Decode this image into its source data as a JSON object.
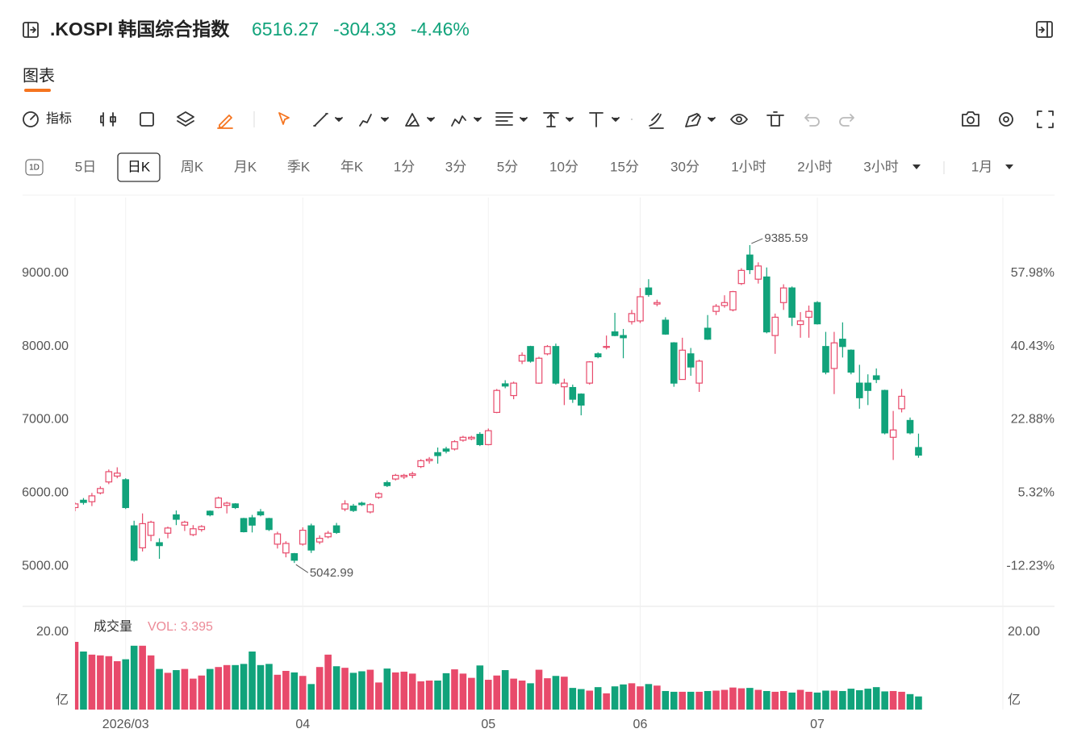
{
  "quote": {
    "symbol": ".KOSPI 韩国综合指数",
    "price": "6516.27",
    "change": "-304.33",
    "change_pct": "-4.46%"
  },
  "tab": "图表",
  "toolbar": {
    "indicator": "指标"
  },
  "intervals_icon": "1D",
  "intervals": [
    "5日",
    "日K",
    "周K",
    "月K",
    "季K",
    "年K",
    "1分",
    "3分",
    "5分",
    "10分",
    "15分",
    "30分",
    "1小时",
    "2小时",
    "3小时",
    "1月"
  ],
  "chart_data": {
    "type": "candlestick",
    "up_color": "#e84a6b",
    "down_color": "#11a37b",
    "up_hollow": true,
    "grid": "x",
    "open": [
      5800,
      5900,
      5880,
      6000,
      6150,
      6230,
      6180,
      5550,
      5250,
      5420,
      5320,
      5450,
      5700,
      5560,
      5430,
      5500,
      5750,
      5800,
      5830,
      5850,
      5650,
      5660,
      5740,
      5650,
      5300,
      5180,
      5170,
      5300,
      5550,
      5330,
      5400,
      5550,
      5780,
      5820,
      5860,
      5740,
      5940,
      6140,
      6190,
      6220,
      6240,
      6360,
      6440,
      6550,
      6600,
      6600,
      6720,
      6740,
      6800,
      6660,
      7100,
      7490,
      7330,
      7800,
      8000,
      7500,
      7900,
      8000,
      7450,
      7440,
      7350,
      7500,
      7900,
      7990,
      8200,
      8150,
      8340,
      8350,
      8800,
      8580,
      8360,
      8050,
      7550,
      7900,
      7500,
      8250,
      8480,
      8560,
      8500,
      8860,
      9250,
      8920,
      8950,
      8150,
      8600,
      8800,
      8300,
      8400,
      8600,
      8000,
      7700,
      8100,
      7950,
      7500,
      7500,
      7600,
      7400,
      6760,
      7150,
      6990,
      6620
    ],
    "high": [
      5870,
      5930,
      6000,
      6090,
      6320,
      6350,
      6200,
      5620,
      5720,
      5620,
      5380,
      5540,
      5760,
      5620,
      5560,
      5560,
      5760,
      5950,
      5880,
      5860,
      5660,
      5700,
      5780,
      5660,
      5470,
      5340,
      5180,
      5530,
      5580,
      5420,
      5480,
      5590,
      5900,
      5850,
      5880,
      5860,
      6010,
      6170,
      6260,
      6260,
      6290,
      6460,
      6490,
      6620,
      6630,
      6720,
      6780,
      6780,
      6830,
      6880,
      7420,
      7540,
      7520,
      7920,
      8010,
      7860,
      8020,
      8040,
      7560,
      7480,
      7360,
      7800,
      7920,
      8150,
      8460,
      8240,
      8500,
      8800,
      8920,
      8640,
      8400,
      8060,
      8120,
      7980,
      7820,
      8430,
      8580,
      8700,
      8760,
      9070,
      9385.59,
      9150,
      9080,
      8450,
      8850,
      8820,
      8470,
      8560,
      8620,
      8200,
      8200,
      8330,
      7960,
      7750,
      7620,
      7700,
      7410,
      7120,
      7420,
      7030,
      6810
    ],
    "low": [
      5750,
      5840,
      5820,
      5980,
      6120,
      6200,
      5780,
      5060,
      5200,
      5340,
      5100,
      5380,
      5560,
      5480,
      5410,
      5470,
      5680,
      5790,
      5720,
      5780,
      5460,
      5460,
      5680,
      5480,
      5240,
      5120,
      5042.99,
      5280,
      5180,
      5300,
      5380,
      5440,
      5750,
      5740,
      5820,
      5720,
      5920,
      6080,
      6170,
      6190,
      6200,
      6340,
      6400,
      6400,
      6540,
      6580,
      6700,
      6720,
      6640,
      6650,
      7090,
      7430,
      7280,
      7760,
      7780,
      7490,
      7880,
      7480,
      7200,
      7230,
      7060,
      7480,
      7840,
      7960,
      8140,
      7840,
      8300,
      8320,
      8680,
      8550,
      8160,
      7450,
      7550,
      7600,
      7380,
      8090,
      8430,
      8530,
      8480,
      8840,
      8990,
      8860,
      8180,
      7900,
      8500,
      8280,
      8120,
      8120,
      8300,
      7620,
      7350,
      7850,
      7620,
      7150,
      7200,
      7500,
      6800,
      6450,
      7100,
      6800,
      6480
    ],
    "close": [
      5850,
      5870,
      5960,
      6060,
      6290,
      6270,
      5800,
      5080,
      5580,
      5600,
      5280,
      5520,
      5640,
      5600,
      5510,
      5540,
      5700,
      5930,
      5860,
      5800,
      5470,
      5560,
      5700,
      5500,
      5440,
      5310,
      5080,
      5490,
      5220,
      5380,
      5450,
      5460,
      5850,
      5760,
      5840,
      5840,
      5990,
      6100,
      6240,
      6240,
      6260,
      6440,
      6460,
      6510,
      6570,
      6700,
      6760,
      6760,
      6660,
      6850,
      7400,
      7460,
      7500,
      7880,
      7800,
      7840,
      8000,
      7500,
      7500,
      7280,
      7200,
      7790,
      7860,
      8000,
      8150,
      8120,
      8450,
      8680,
      8710,
      8600,
      8170,
      7500,
      7950,
      7720,
      7800,
      8100,
      8550,
      8600,
      8750,
      9040,
      9050,
      9100,
      8200,
      8400,
      8800,
      8400,
      8350,
      8480,
      8310,
      7650,
      8050,
      8000,
      7650,
      7300,
      7400,
      7550,
      6820,
      6860,
      7320,
      6820.6,
      6516.27
    ],
    "volume": [
      17.5,
      15,
      14.2,
      14,
      13.8,
      12.5,
      13,
      16.5,
      16.5,
      14,
      10.5,
      9.5,
      10.2,
      10.5,
      8,
      8.8,
      10.5,
      11,
      11.5,
      11.5,
      11.8,
      15,
      11.5,
      11.8,
      9,
      10,
      9.6,
      8.7,
      6.6,
      11,
      14.2,
      11.2,
      10.8,
      9.5,
      9.9,
      10.3,
      7,
      10.6,
      9.6,
      9.8,
      9.3,
      7.3,
      7.5,
      7.5,
      9.4,
      10.4,
      9.3,
      8.2,
      11.4,
      7.7,
      8.8,
      10.2,
      8,
      7.5,
      6.8,
      10.3,
      8.1,
      8.7,
      8.5,
      5.6,
      5.3,
      4.9,
      5.8,
      4.2,
      6,
      6.5,
      6.8,
      6,
      6.6,
      6.2,
      4.8,
      4.6,
      4.6,
      4.6,
      4.6,
      4.8,
      4.9,
      5.1,
      5.7,
      5.5,
      5.6,
      5.1,
      4.8,
      4.6,
      4.8,
      4.4,
      5.1,
      4.6,
      4.4,
      4.9,
      4.9,
      4.8,
      5.4,
      5,
      5.4,
      5.8,
      4.7,
      4.8,
      4.6,
      4,
      3.395
    ],
    "max_label": "9385.59",
    "min_label": "5042.99",
    "xlim": [
      0,
      110
    ],
    "xticks": [
      {
        "value": 6,
        "label": "2026/03"
      },
      {
        "value": 27,
        "label": "04"
      },
      {
        "value": 49,
        "label": "05"
      },
      {
        "value": 67,
        "label": "06"
      },
      {
        "value": 88,
        "label": "07"
      }
    ],
    "ylim": [
      4450,
      10035
    ],
    "yticks": [
      {
        "value": 5000,
        "label": "5000.00"
      },
      {
        "value": 6000,
        "label": "6000.00"
      },
      {
        "value": 7000,
        "label": "7000.00"
      },
      {
        "value": 8000,
        "label": "8000.00"
      },
      {
        "value": 9000,
        "label": "9000.00"
      }
    ],
    "y2lim": [
      -21.89,
      76.14
    ],
    "y2ticks": [
      {
        "value": -12.23,
        "label": "-12.23%"
      },
      {
        "value": 5.32,
        "label": "5.32%"
      },
      {
        "value": 22.88,
        "label": "22.88%"
      },
      {
        "value": 40.43,
        "label": "40.43%"
      },
      {
        "value": 57.98,
        "label": "57.98%"
      }
    ],
    "volume_title": "成交量",
    "volume_label": "VOL: 3.395",
    "volume_unit": "亿",
    "volume_ylim": [
      0,
      26.67
    ],
    "volume_yticks": [
      {
        "value": 20,
        "label": "20.00"
      }
    ]
  }
}
